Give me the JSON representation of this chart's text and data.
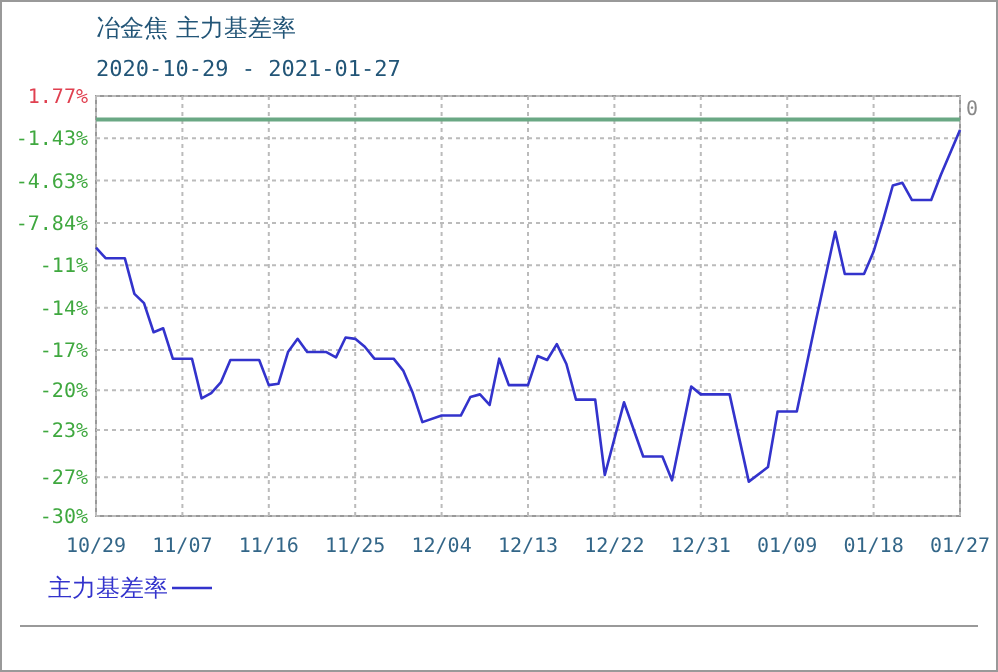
{
  "chart_data": {
    "type": "line",
    "title": "冶金焦 主力基差率",
    "subtitle": "2020-10-29 - 2021-01-27",
    "x": [
      "2020-10-29",
      "2020-10-30",
      "2020-11-01",
      "2020-11-02",
      "2020-11-03",
      "2020-11-04",
      "2020-11-05",
      "2020-11-06",
      "2020-11-08",
      "2020-11-09",
      "2020-11-10",
      "2020-11-11",
      "2020-11-12",
      "2020-11-15",
      "2020-11-16",
      "2020-11-17",
      "2020-11-18",
      "2020-11-19",
      "2020-11-20",
      "2020-11-22",
      "2020-11-23",
      "2020-11-24",
      "2020-11-25",
      "2020-11-26",
      "2020-11-27",
      "2020-11-29",
      "2020-11-30",
      "2020-12-01",
      "2020-12-02",
      "2020-12-04",
      "2020-12-06",
      "2020-12-07",
      "2020-12-08",
      "2020-12-09",
      "2020-12-10",
      "2020-12-11",
      "2020-12-13",
      "2020-12-14",
      "2020-12-15",
      "2020-12-16",
      "2020-12-17",
      "2020-12-18",
      "2020-12-20",
      "2020-12-21",
      "2020-12-23",
      "2020-12-25",
      "2020-12-27",
      "2020-12-28",
      "2020-12-30",
      "2020-12-31",
      "2021-01-03",
      "2021-01-05",
      "2021-01-07",
      "2021-01-08",
      "2021-01-10",
      "2021-01-12",
      "2021-01-14",
      "2021-01-15",
      "2021-01-17",
      "2021-01-18",
      "2021-01-19",
      "2021-01-20",
      "2021-01-21",
      "2021-01-22",
      "2021-01-24",
      "2021-01-25",
      "2021-01-27"
    ],
    "series": [
      {
        "name": "主力基差率",
        "color": "#3333cc",
        "values": [
          -9.7,
          -10.5,
          -10.5,
          -13.2,
          -13.9,
          -16.1,
          -15.8,
          -18.1,
          -18.1,
          -21.1,
          -20.7,
          -19.9,
          -18.2,
          -18.2,
          -20.1,
          -20.0,
          -17.6,
          -16.6,
          -17.6,
          -17.6,
          -18.0,
          -16.5,
          -16.6,
          -17.2,
          -18.1,
          -18.1,
          -19.0,
          -20.7,
          -22.9,
          -22.4,
          -22.4,
          -21.0,
          -20.8,
          -21.6,
          -18.1,
          -20.1,
          -20.1,
          -17.9,
          -18.2,
          -17.0,
          -18.5,
          -21.2,
          -21.2,
          -26.9,
          -21.4,
          -25.5,
          -25.5,
          -27.3,
          -20.2,
          -20.8,
          -20.8,
          -27.4,
          -26.3,
          -22.1,
          -22.1,
          -15.2,
          -8.5,
          -11.7,
          -11.7,
          -10.0,
          -7.6,
          -5.0,
          -4.8,
          -6.1,
          -6.1,
          -4.2,
          -0.8
        ]
      }
    ],
    "xlim": [
      "2020-10-29",
      "2021-01-27"
    ],
    "xticks": [
      {
        "value": "2020-10-29",
        "label": "10/29"
      },
      {
        "value": "2020-11-07",
        "label": "11/07"
      },
      {
        "value": "2020-11-16",
        "label": "11/16"
      },
      {
        "value": "2020-11-25",
        "label": "11/25"
      },
      {
        "value": "2020-12-04",
        "label": "12/04"
      },
      {
        "value": "2020-12-13",
        "label": "12/13"
      },
      {
        "value": "2020-12-22",
        "label": "12/22"
      },
      {
        "value": "2020-12-31",
        "label": "12/31"
      },
      {
        "value": "2021-01-09",
        "label": "01/09"
      },
      {
        "value": "2021-01-18",
        "label": "01/18"
      },
      {
        "value": "2021-01-27",
        "label": "01/27"
      }
    ],
    "ylim": [
      -30,
      1.77
    ],
    "yticks": [
      {
        "value": 1.77,
        "label": "1.77%"
      },
      {
        "value": -1.43,
        "label": "-1.43%"
      },
      {
        "value": -4.63,
        "label": "-4.63%"
      },
      {
        "value": -7.84,
        "label": "-7.84%"
      },
      {
        "value": -11.04,
        "label": "-11%"
      },
      {
        "value": -14.25,
        "label": "-14%"
      },
      {
        "value": -17.45,
        "label": "-17%"
      },
      {
        "value": -20.49,
        "label": "-20%"
      },
      {
        "value": -23.49,
        "label": "-23%"
      },
      {
        "value": -27.07,
        "label": "-27%"
      },
      {
        "value": -30,
        "label": "-30%"
      }
    ],
    "ref_lines": [
      {
        "axis": "y",
        "value": 0,
        "label": "0",
        "color": "#6aa884"
      }
    ],
    "grid": true,
    "legend": "bottom",
    "line_style": "solid",
    "marker": "none"
  }
}
